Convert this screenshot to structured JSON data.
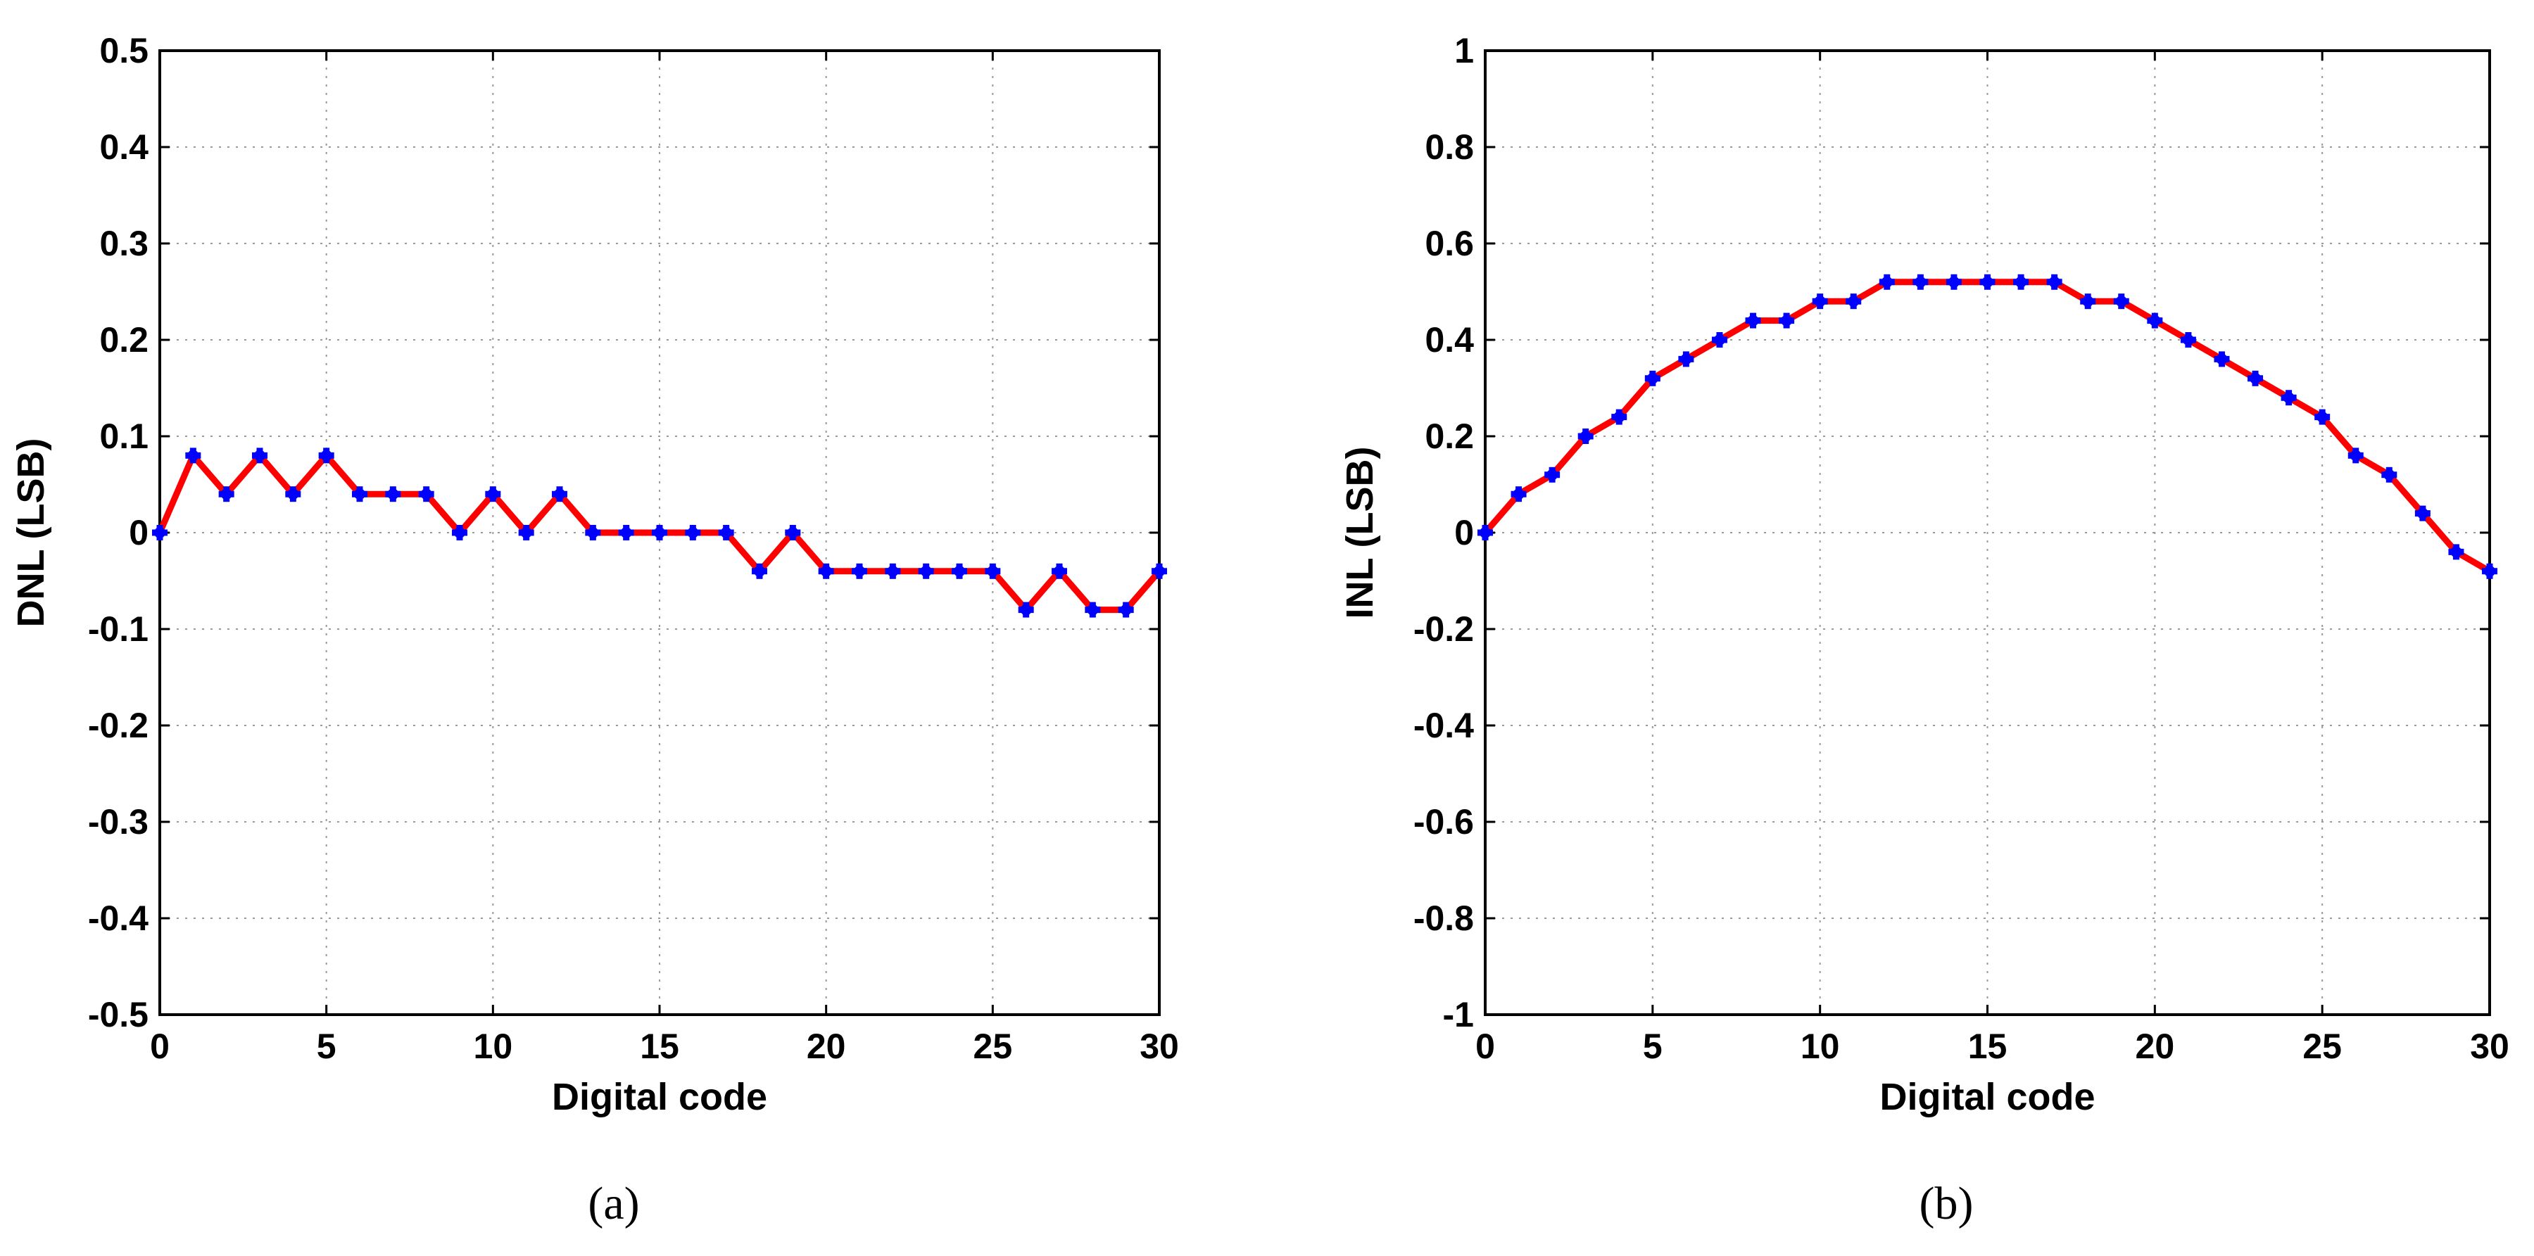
{
  "chart_data": [
    {
      "type": "line",
      "panel_label": "a",
      "xlabel": "Digital code",
      "ylabel": "DNL (LSB)",
      "xlim": [
        0,
        30
      ],
      "ylim": [
        -0.5,
        0.5
      ],
      "xticks": [
        0,
        5,
        10,
        15,
        20,
        25,
        30
      ],
      "xtick_labels": [
        "0",
        "5",
        "10",
        "15",
        "20",
        "25",
        "30"
      ],
      "yticks": [
        -0.5,
        -0.4,
        -0.3,
        -0.2,
        -0.1,
        0,
        0.1,
        0.2,
        0.3,
        0.4,
        0.5
      ],
      "ytick_labels": [
        "-0.5",
        "-0.4",
        "-0.3",
        "-0.2",
        "-0.1",
        "0",
        "0.1",
        "0.2",
        "0.3",
        "0.4",
        "0.5"
      ],
      "grid": true,
      "line_color": "#ff0000",
      "marker_color": "#0000ff",
      "marker": "plus",
      "x": [
        0,
        1,
        2,
        3,
        4,
        5,
        6,
        7,
        8,
        9,
        10,
        11,
        12,
        13,
        14,
        15,
        16,
        17,
        18,
        19,
        20,
        21,
        22,
        23,
        24,
        25,
        26,
        27,
        28,
        29,
        30
      ],
      "y": [
        0,
        0.08,
        0.04,
        0.08,
        0.04,
        0.08,
        0.04,
        0.04,
        0.04,
        0,
        0.04,
        0,
        0.04,
        0,
        0,
        0,
        0,
        0,
        -0.04,
        0,
        -0.04,
        -0.04,
        -0.04,
        -0.04,
        -0.04,
        -0.04,
        -0.08,
        -0.04,
        -0.08,
        -0.08,
        -0.04
      ]
    },
    {
      "type": "line",
      "panel_label": "b",
      "xlabel": "Digital code",
      "ylabel": "INL (LSB)",
      "xlim": [
        0,
        30
      ],
      "ylim": [
        -1,
        1
      ],
      "xticks": [
        0,
        5,
        10,
        15,
        20,
        25,
        30
      ],
      "xtick_labels": [
        "0",
        "5",
        "10",
        "15",
        "20",
        "25",
        "30"
      ],
      "yticks": [
        -1,
        -0.8,
        -0.6,
        -0.4,
        -0.2,
        0,
        0.2,
        0.4,
        0.6,
        0.8,
        1
      ],
      "ytick_labels": [
        "-1",
        "-0.8",
        "-0.6",
        "-0.4",
        "-0.2",
        "0",
        "0.2",
        "0.4",
        "0.6",
        "0.8",
        "1"
      ],
      "grid": true,
      "line_color": "#ff0000",
      "marker_color": "#0000ff",
      "marker": "plus",
      "x": [
        0,
        1,
        2,
        3,
        4,
        5,
        6,
        7,
        8,
        9,
        10,
        11,
        12,
        13,
        14,
        15,
        16,
        17,
        18,
        19,
        20,
        21,
        22,
        23,
        24,
        25,
        26,
        27,
        28,
        29,
        30
      ],
      "y": [
        0,
        0.08,
        0.12,
        0.2,
        0.24,
        0.32,
        0.36,
        0.4,
        0.44,
        0.44,
        0.48,
        0.48,
        0.52,
        0.52,
        0.52,
        0.52,
        0.52,
        0.52,
        0.48,
        0.48,
        0.44,
        0.4,
        0.36,
        0.32,
        0.28,
        0.24,
        0.16,
        0.12,
        0.04,
        -0.04,
        -0.08
      ]
    }
  ],
  "captions": [
    "(a)",
    "(b)"
  ]
}
